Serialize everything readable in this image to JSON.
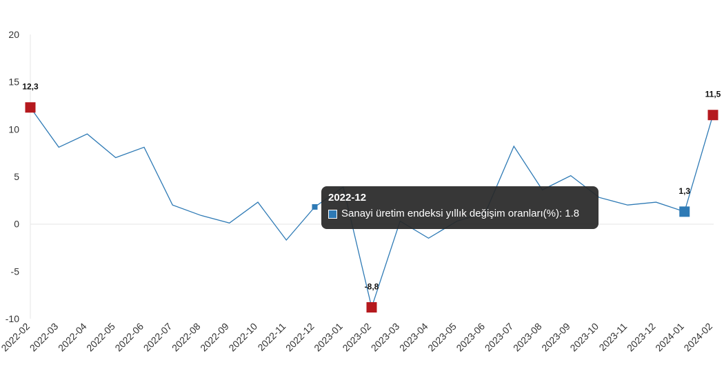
{
  "chart_data": {
    "type": "line",
    "categories": [
      "2022-02",
      "2022-03",
      "2022-04",
      "2022-05",
      "2022-06",
      "2022-07",
      "2022-08",
      "2022-09",
      "2022-10",
      "2022-11",
      "2022-12",
      "2023-01",
      "2023-02",
      "2023-03",
      "2023-04",
      "2023-05",
      "2023-06",
      "2023-07",
      "2023-08",
      "2023-09",
      "2023-10",
      "2023-11",
      "2023-12",
      "2024-01",
      "2024-02"
    ],
    "series": [
      {
        "name": "Sanayi üretim endeksi yıllık değişim oranları(%)",
        "values": [
          12.3,
          8.1,
          9.5,
          7.0,
          8.1,
          2.0,
          0.9,
          0.1,
          2.3,
          -1.7,
          1.8,
          3.9,
          -8.8,
          0.3,
          -1.5,
          0.3,
          1.2,
          8.2,
          3.6,
          5.1,
          2.8,
          2.0,
          2.3,
          1.3,
          11.5
        ],
        "color": "#2e7ab5"
      }
    ],
    "ylim": [
      -10,
      20
    ],
    "yticks": [
      "-10",
      "-5",
      "0",
      "5",
      "10",
      "15",
      "20"
    ],
    "grid": false,
    "highlighted_points": [
      {
        "index": 0,
        "label": "12,3",
        "color": "#b5191e"
      },
      {
        "index": 12,
        "label": "-8,8",
        "color": "#b5191e"
      },
      {
        "index": 23,
        "label": "1,3",
        "color": "#2e7ab5"
      },
      {
        "index": 24,
        "label": "11,5",
        "color": "#b5191e"
      }
    ],
    "tooltip": {
      "category": "2022-12",
      "text": "Sanayi üretim endeksi yıllık değişim oranları(%): 1.8",
      "swatch_color": "#2e7ab5",
      "hover_index": 10
    }
  }
}
